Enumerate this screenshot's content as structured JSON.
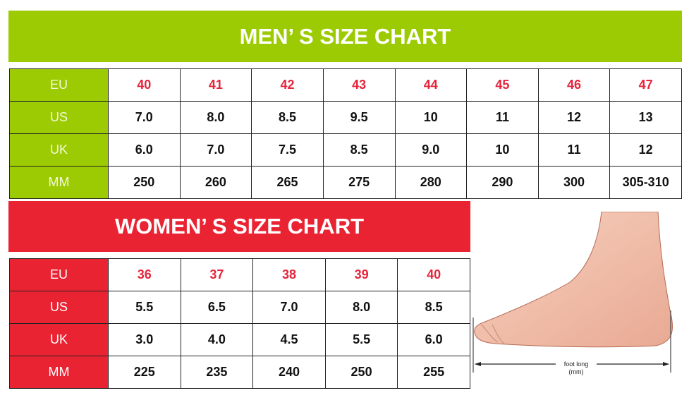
{
  "men": {
    "title": "MEN’ S SIZE CHART",
    "color": "#9ccb03",
    "rows": [
      {
        "label": "EU",
        "values": [
          "40",
          "41",
          "42",
          "43",
          "44",
          "45",
          "46",
          "47"
        ]
      },
      {
        "label": "US",
        "values": [
          "7.0",
          "8.0",
          "8.5",
          "9.5",
          "10",
          "11",
          "12",
          "13"
        ]
      },
      {
        "label": "UK",
        "values": [
          "6.0",
          "7.0",
          "7.5",
          "8.5",
          "9.0",
          "10",
          "11",
          "12"
        ]
      },
      {
        "label": "MM",
        "values": [
          "250",
          "260",
          "265",
          "275",
          "280",
          "290",
          "300",
          "305-310"
        ]
      }
    ]
  },
  "women": {
    "title": "WOMEN’ S SIZE CHART",
    "color": "#ea2333",
    "rows": [
      {
        "label": "EU",
        "values": [
          "36",
          "37",
          "38",
          "39",
          "40"
        ]
      },
      {
        "label": "US",
        "values": [
          "5.5",
          "6.5",
          "7.0",
          "8.0",
          "8.5"
        ]
      },
      {
        "label": "UK",
        "values": [
          "3.0",
          "4.0",
          "4.5",
          "5.5",
          "6.0"
        ]
      },
      {
        "label": "MM",
        "values": [
          "225",
          "235",
          "240",
          "250",
          "255"
        ]
      }
    ]
  },
  "foot": {
    "label_line1": "foot long",
    "label_line2": "(mm)"
  },
  "eu_value_color": "#e5253b"
}
